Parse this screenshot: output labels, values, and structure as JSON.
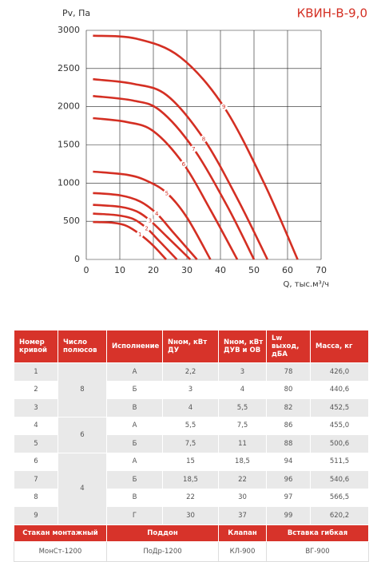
{
  "chart_data": {
    "type": "line",
    "title": "КВИН-В-9,0",
    "y_label": "Pv, Па",
    "x_label": "Q, тыс.м³/ч",
    "xlim": [
      0,
      70
    ],
    "xticks": [
      0,
      10,
      20,
      30,
      40,
      50,
      60,
      70
    ],
    "ylim": [
      0,
      3000
    ],
    "yticks": [
      0,
      500,
      1000,
      1500,
      2000,
      2500,
      3000
    ],
    "grid": true,
    "color": "#d42f23",
    "series": [
      {
        "name": "1",
        "x": [
          2,
          8,
          12,
          16,
          20,
          23.8
        ],
        "values": [
          490,
          480,
          440,
          330,
          180,
          0
        ]
      },
      {
        "name": "2",
        "x": [
          2,
          9,
          14,
          18,
          22,
          27
        ],
        "values": [
          600,
          580,
          530,
          410,
          230,
          0
        ]
      },
      {
        "name": "3",
        "x": [
          2,
          10,
          15,
          19,
          24,
          31
        ],
        "values": [
          715,
          690,
          630,
          510,
          300,
          0
        ]
      },
      {
        "name": "4",
        "x": [
          2,
          10,
          16,
          21,
          26,
          33
        ],
        "values": [
          870,
          840,
          760,
          600,
          350,
          0
        ]
      },
      {
        "name": "5",
        "x": [
          2,
          12,
          18,
          24,
          30,
          37
        ],
        "values": [
          1150,
          1110,
          1030,
          870,
          550,
          0
        ]
      },
      {
        "name": "6",
        "x": [
          2,
          12,
          20,
          29,
          37,
          45
        ],
        "values": [
          1850,
          1800,
          1680,
          1250,
          650,
          0
        ]
      },
      {
        "name": "7",
        "x": [
          2,
          14,
          22,
          32,
          42,
          50
        ],
        "values": [
          2140,
          2080,
          1950,
          1450,
          700,
          0
        ]
      },
      {
        "name": "8",
        "x": [
          2,
          14,
          24,
          35,
          45,
          54
        ],
        "values": [
          2360,
          2300,
          2150,
          1580,
          800,
          0
        ]
      },
      {
        "name": "9",
        "x": [
          2,
          15,
          28,
          41,
          53,
          63
        ],
        "values": [
          2930,
          2890,
          2650,
          2000,
          1000,
          0
        ]
      }
    ]
  },
  "table": {
    "columns": [
      "Номер\nкривой",
      "Число\nполюсов",
      "Исполнение",
      "Nном, кВт\nДУ",
      "Nном, кВт\nДУВ и ОВ",
      "Lw выход,\nдБА",
      "Масса, кг"
    ],
    "groups": [
      {
        "poles": "8",
        "rows": [
          [
            "1",
            "А",
            "2,2",
            "3",
            "78",
            "426,0"
          ],
          [
            "2",
            "Б",
            "3",
            "4",
            "80",
            "440,6"
          ],
          [
            "3",
            "В",
            "4",
            "5,5",
            "82",
            "452,5"
          ]
        ]
      },
      {
        "poles": "6",
        "rows": [
          [
            "4",
            "А",
            "5,5",
            "7,5",
            "86",
            "455,0"
          ],
          [
            "5",
            "Б",
            "7,5",
            "11",
            "88",
            "500,6"
          ]
        ]
      },
      {
        "poles": "4",
        "rows": [
          [
            "6",
            "А",
            "15",
            "18,5",
            "94",
            "511,5"
          ],
          [
            "7",
            "Б",
            "18,5",
            "22",
            "96",
            "540,6"
          ],
          [
            "8",
            "В",
            "22",
            "30",
            "97",
            "566,5"
          ],
          [
            "9",
            "Г",
            "30",
            "37",
            "99",
            "620,2"
          ]
        ]
      }
    ]
  },
  "accessories": {
    "headers": [
      "Стакан монтажный",
      "Поддон",
      "Клапан",
      "Вставка гибкая"
    ],
    "values": [
      "МонСт-1200",
      "ПоДр-1200",
      "КЛ-900",
      "ВГ-900"
    ]
  }
}
